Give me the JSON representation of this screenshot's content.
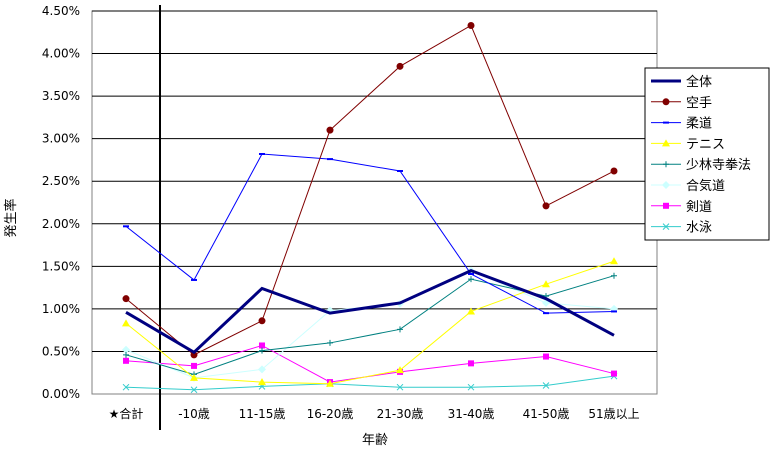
{
  "chart_data": {
    "type": "line",
    "xlabel": "年齢",
    "ylabel": "発生率",
    "categories": [
      "★合計",
      "-10歳",
      "11-15歳",
      "16-20歳",
      "21-30歳",
      "31-40歳",
      "41-50歳",
      "51歳以上"
    ],
    "ylim": [
      0,
      4.5
    ],
    "yticks": [
      "0.00%",
      "0.50%",
      "1.00%",
      "1.50%",
      "2.00%",
      "2.50%",
      "3.00%",
      "3.50%",
      "4.00%",
      "4.50%"
    ],
    "grid": true,
    "legend_position": "right",
    "series": [
      {
        "name": "全体",
        "color": "#000080",
        "marker": "none",
        "width": 3,
        "values": [
          0.96,
          0.49,
          1.24,
          0.95,
          1.07,
          1.45,
          1.12,
          0.69
        ]
      },
      {
        "name": "空手",
        "color": "#800000",
        "marker": "circle",
        "width": 1,
        "values": [
          1.12,
          0.46,
          0.86,
          3.1,
          3.85,
          4.33,
          2.21,
          2.62
        ]
      },
      {
        "name": "柔道",
        "color": "#0000ff",
        "marker": "dash",
        "width": 1,
        "values": [
          1.97,
          1.34,
          2.82,
          2.76,
          2.62,
          1.41,
          0.95,
          0.97
        ]
      },
      {
        "name": "テニス",
        "color": "#ffff00",
        "marker": "triangle",
        "width": 1,
        "values": [
          0.83,
          0.19,
          0.14,
          0.12,
          0.28,
          0.97,
          1.29,
          1.56
        ]
      },
      {
        "name": "少林寺拳法",
        "color": "#008080",
        "marker": "plus",
        "width": 1,
        "values": [
          0.46,
          0.23,
          0.51,
          0.6,
          0.76,
          1.35,
          1.15,
          1.39
        ]
      },
      {
        "name": "合気道",
        "color": "#ccffff",
        "marker": "diamond",
        "width": 1,
        "values": [
          0.52,
          0.19,
          0.29,
          0.98,
          1.06,
          1.45,
          1.07,
          1.0
        ]
      },
      {
        "name": "剣道",
        "color": "#ff00ff",
        "marker": "square",
        "width": 1,
        "values": [
          0.39,
          0.33,
          0.57,
          0.14,
          0.26,
          0.36,
          0.44,
          0.24
        ]
      },
      {
        "name": "水泳",
        "color": "#33cccc",
        "marker": "x",
        "width": 1,
        "values": [
          0.08,
          0.05,
          0.09,
          0.12,
          0.08,
          0.08,
          0.1,
          0.21
        ]
      }
    ]
  }
}
